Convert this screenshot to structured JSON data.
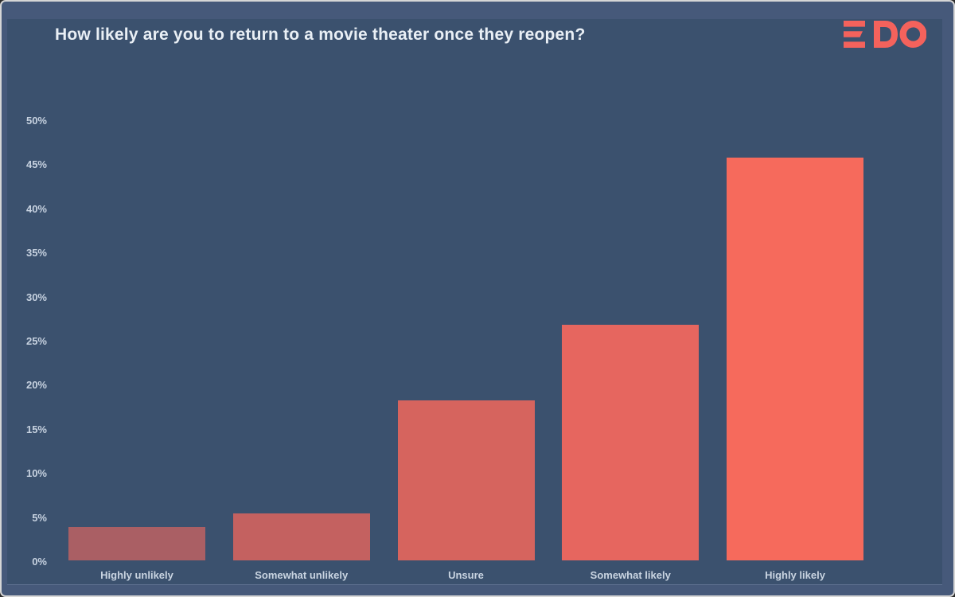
{
  "header": {
    "title": "How likely are you to return to a movie theater once they reopen?",
    "logo_text": "EDO"
  },
  "colors": {
    "outer_background": "#46597a",
    "panel_background": "#3b516e",
    "title_text": "#e9eff5",
    "axis_text": "#c7d2e0",
    "logo": "#f4625c"
  },
  "chart_data": {
    "type": "bar",
    "title": "How likely are you to return to a movie theater once they reopen?",
    "categories": [
      "Highly unlikely",
      "Somewhat unlikely",
      "Unsure",
      "Somewhat likely",
      "Highly likely"
    ],
    "values": [
      3.8,
      5.3,
      18.1,
      26.7,
      45.7
    ],
    "bar_colors": [
      "#aa5f64",
      "#c46160",
      "#d6645e",
      "#e6665f",
      "#f66a5c"
    ],
    "xlabel": "",
    "ylabel": "",
    "ylim": [
      0,
      50
    ],
    "ytick_step": 5,
    "ytick_labels_top_to_bottom": [
      "50%",
      "45%",
      "40%",
      "35%",
      "30%",
      "25%",
      "20%",
      "15%",
      "10%",
      "5%",
      "0%"
    ],
    "grid": false,
    "legend": false
  }
}
